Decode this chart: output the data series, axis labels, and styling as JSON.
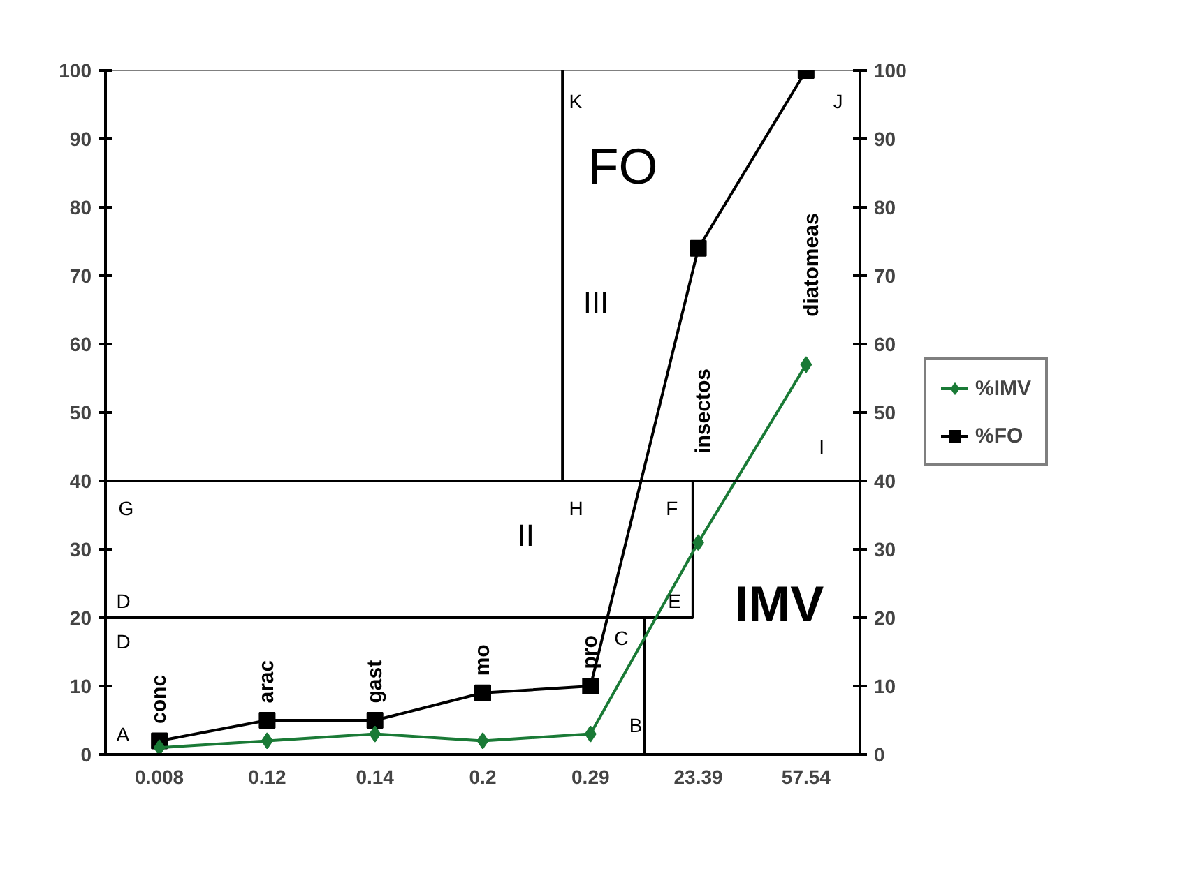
{
  "chart_data": {
    "type": "line",
    "categories": [
      "0.008",
      "0.12",
      "0.14",
      "0.2",
      "0.29",
      "23.39",
      "57.54"
    ],
    "series": [
      {
        "name": "%IMV",
        "color": "#1a7a36",
        "marker": "diamond",
        "values": [
          1,
          2,
          3,
          2,
          3,
          31,
          57
        ]
      },
      {
        "name": "%FO",
        "color": "#000000",
        "marker": "square",
        "values": [
          2,
          5,
          5,
          9,
          10,
          74,
          100
        ]
      }
    ],
    "ylim": [
      0,
      100
    ],
    "yticks": [
      0,
      10,
      20,
      30,
      40,
      50,
      60,
      70,
      80,
      90,
      100
    ],
    "y2lim": [
      0,
      100
    ],
    "y2ticks": [
      0,
      10,
      20,
      30,
      40,
      50,
      60,
      70,
      80,
      90,
      100
    ],
    "ref_lines": [
      {
        "axis": "y",
        "value": 40,
        "label": null,
        "color": "#000000"
      }
    ],
    "grid": false,
    "legend": "right",
    "annotations": [
      {
        "text": "conc",
        "x": "0.008",
        "y": 2
      },
      {
        "text": "arac",
        "x": "0.12",
        "y": 5
      },
      {
        "text": "gast",
        "x": "0.14",
        "y": 5
      },
      {
        "text": "mo",
        "x": "0.2",
        "y": 9
      },
      {
        "text": "pro",
        "x": "0.29",
        "y": 10
      },
      "insectos",
      "diatomeas",
      "A",
      "B",
      "C",
      "D",
      "D",
      "E",
      "F",
      "G",
      "H",
      "I",
      "J",
      "K",
      "II",
      "III",
      "FO",
      "IMV"
    ]
  }
}
